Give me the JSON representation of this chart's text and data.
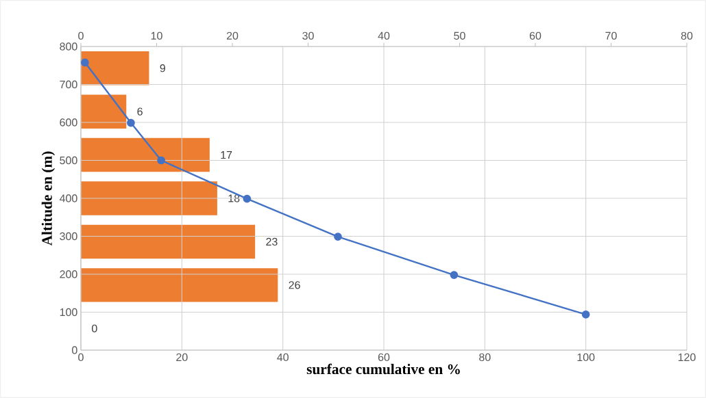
{
  "chart_data": [
    {
      "type": "bar",
      "orientation": "horizontal",
      "categories": [
        null,
        null,
        null,
        null,
        null,
        null
      ],
      "color": "#ed7d31",
      "values": [
        9,
        6,
        17,
        18,
        23,
        26
      ],
      "annotations": [
        "0"
      ],
      "xlim": [
        0,
        80
      ],
      "xticks": [
        0,
        10,
        20,
        30,
        40,
        50,
        60,
        70,
        80
      ],
      "data_labels": true
    },
    {
      "type": "line",
      "xlabel": "surface cumulative en %",
      "ylabel": "Altitude en (m)",
      "color": "#4472c4",
      "x": [
        0.8,
        9.9,
        15.9,
        32.9,
        50.9,
        73.9,
        100
      ],
      "values": [
        758,
        599,
        500,
        399,
        299,
        198,
        94
      ],
      "xlim": [
        0,
        120
      ],
      "xticks": [
        0,
        20,
        40,
        60,
        80,
        100,
        120
      ],
      "ylim": [
        0,
        800
      ],
      "yticks": [
        0,
        100,
        200,
        300,
        400,
        500,
        600,
        700,
        800
      ],
      "grid": true,
      "marker": "circle",
      "line_style": "solid"
    }
  ]
}
